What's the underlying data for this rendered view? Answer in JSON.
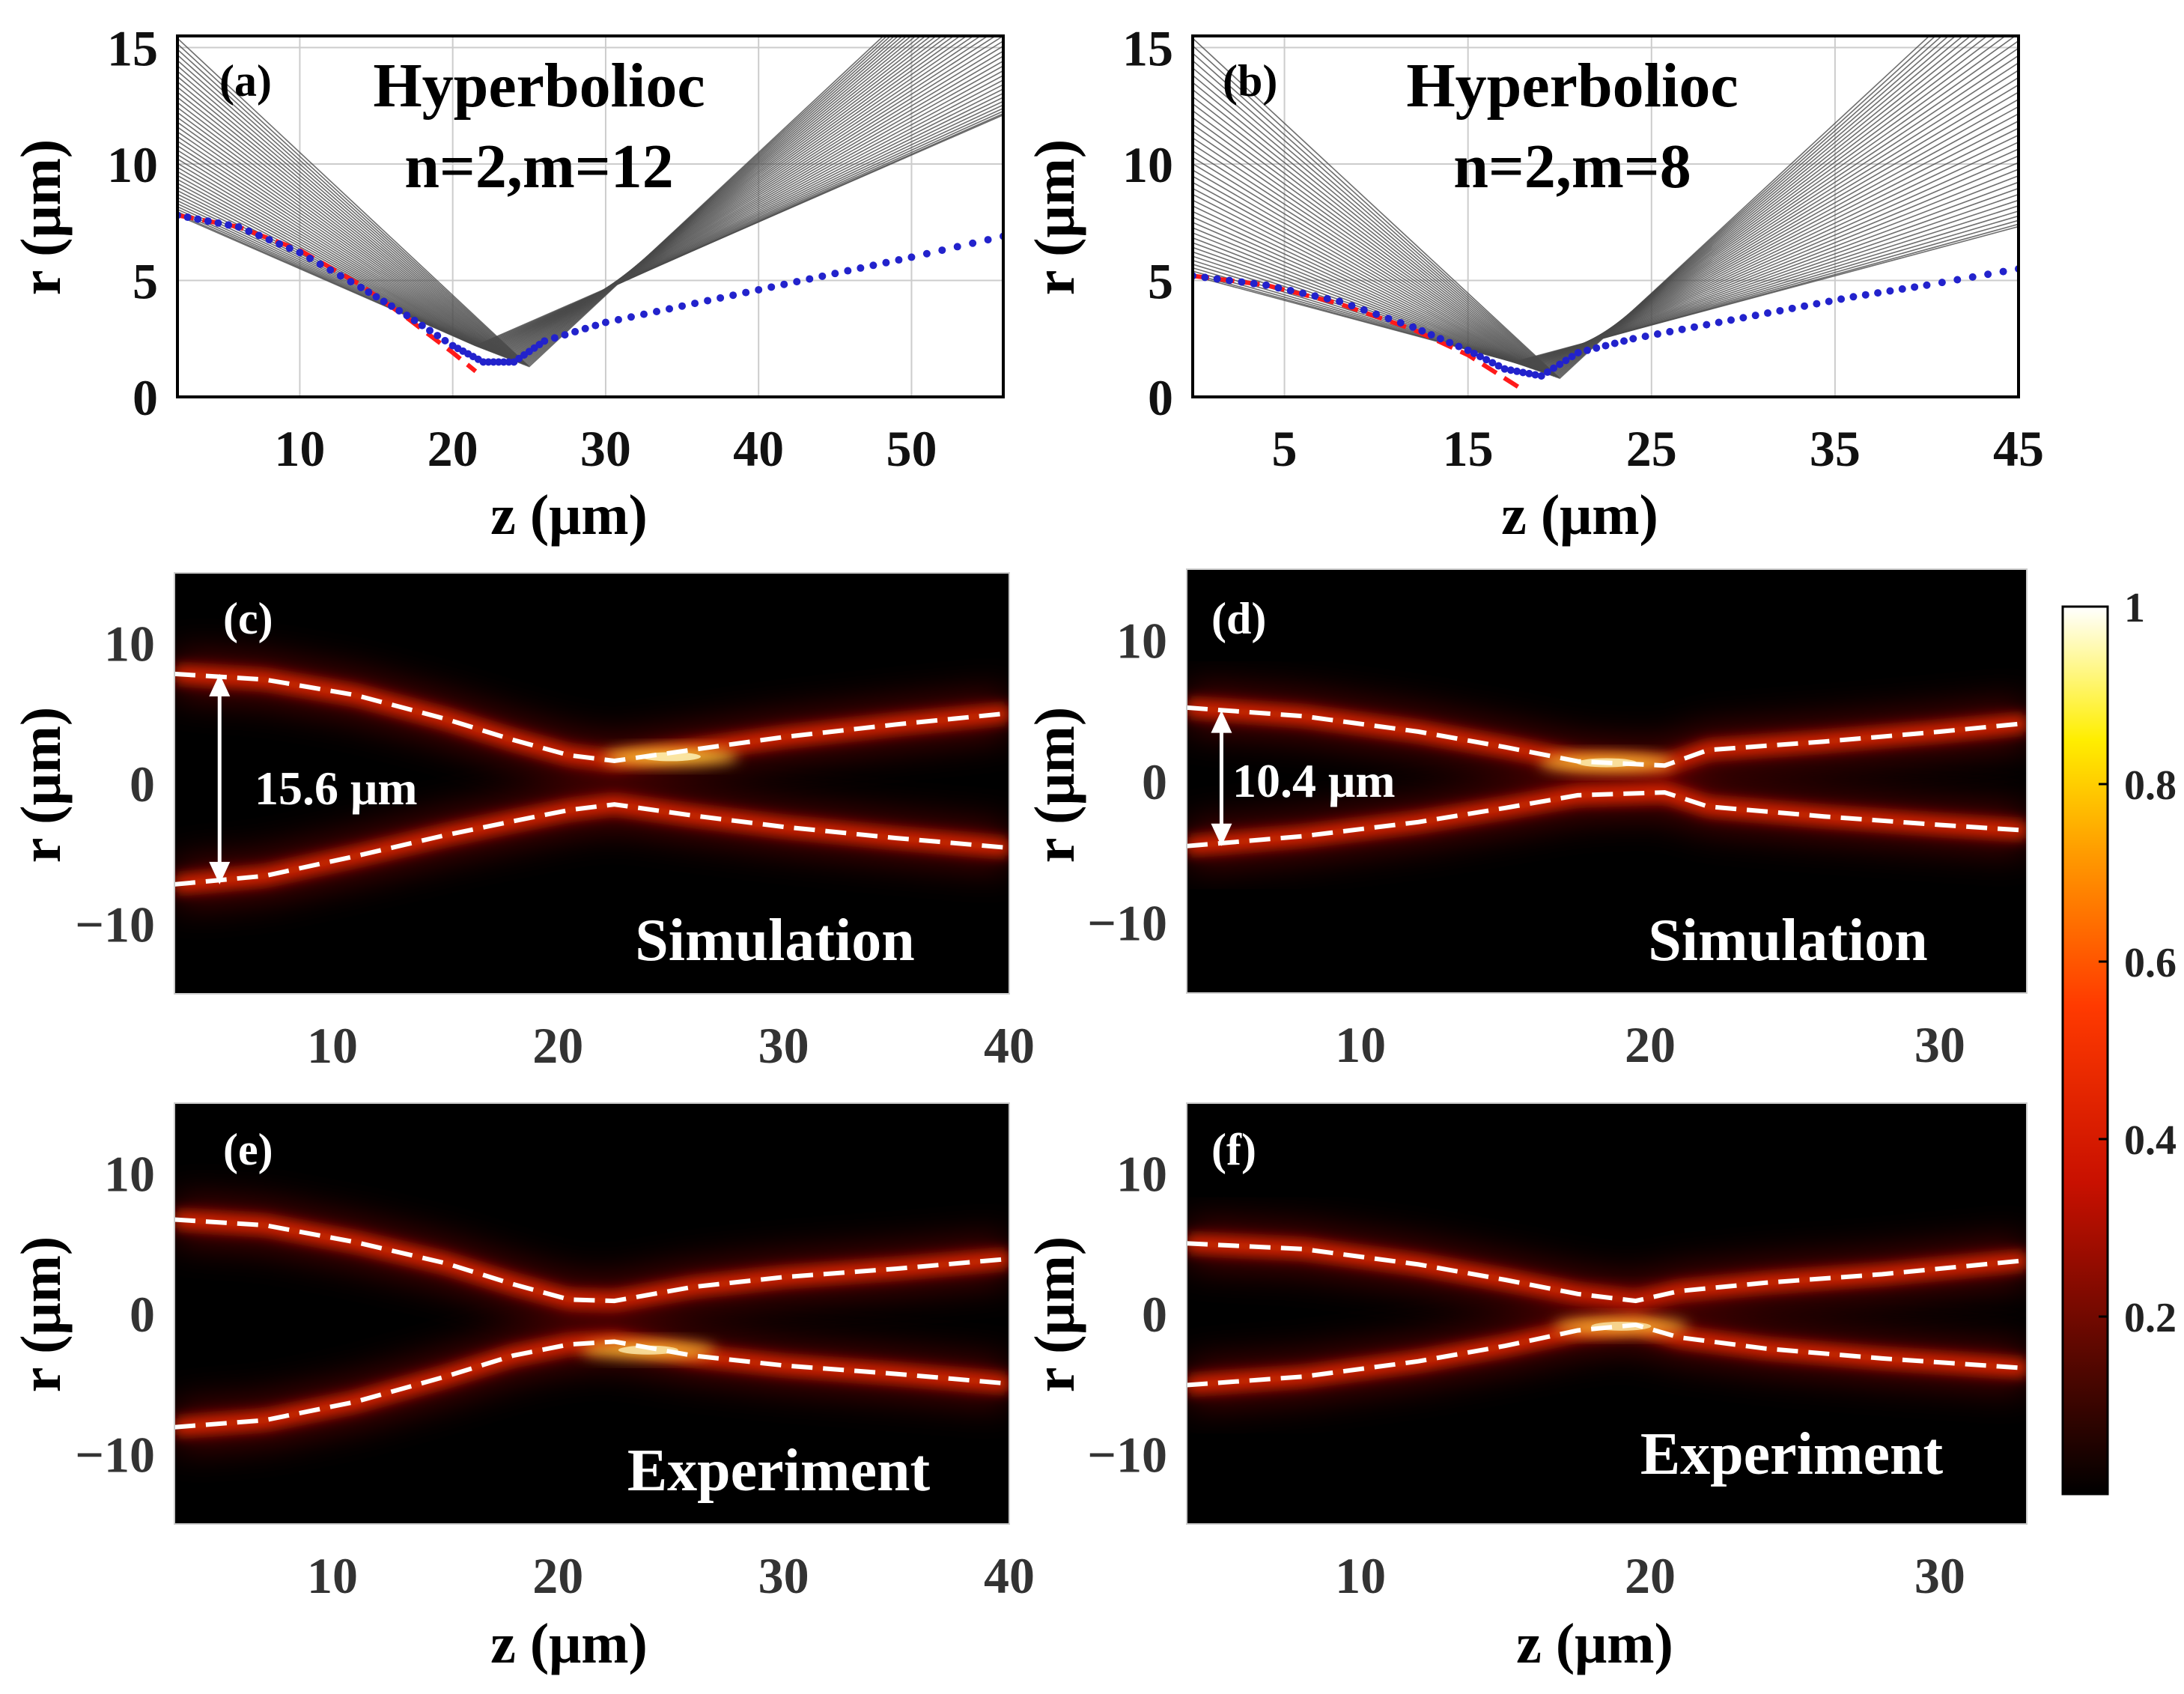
{
  "colors": {
    "ray": "#4a4a4a",
    "theory_dash": "#ff1a1a",
    "numeric_dot": "#2222cc",
    "map_background": "#000000",
    "overlay_dash": "#ffffff",
    "grid": "#cccccc"
  },
  "colorbar": {
    "colormap": "hot",
    "ticks": [
      {
        "value": 1.0,
        "label": "1"
      },
      {
        "value": 0.8,
        "label": "0.8"
      },
      {
        "value": 0.6,
        "label": "0.6"
      },
      {
        "value": 0.4,
        "label": "0.4"
      },
      {
        "value": 0.2,
        "label": "0.2"
      }
    ]
  },
  "chart_data": [
    {
      "id": "a",
      "type": "line",
      "panel_label": "(a)",
      "title": "Hyperbolioc",
      "subtitle": "n=2,m=12",
      "xlabel": "z (μm)",
      "ylabel": "r (μm)",
      "xlim": [
        2,
        56
      ],
      "ylim": [
        0,
        15.5
      ],
      "xticks": [
        10,
        20,
        30,
        40,
        50
      ],
      "yticks": [
        0,
        5,
        10,
        15
      ],
      "grid": true,
      "ray_family": {
        "count": 42,
        "start_z": 2,
        "start_r_range": [
          7.8,
          15.4
        ],
        "focus_z_range": [
          21.5,
          25
        ],
        "focus_r_range": [
          1.3,
          2.2
        ]
      },
      "series": [
        {
          "name": "theory caustic (red dashed)",
          "style": "dashed",
          "x": [
            2,
            6,
            10,
            14,
            17,
            20,
            21.5
          ],
          "y": [
            7.8,
            7.3,
            6.3,
            4.8,
            3.4,
            1.9,
            1.1
          ]
        },
        {
          "name": "numerical envelope (blue dotted)",
          "style": "dotted",
          "x": [
            2,
            6,
            10,
            14,
            17,
            20,
            22,
            24,
            26,
            30,
            35,
            40,
            45,
            50,
            56
          ],
          "y": [
            7.8,
            7.3,
            6.2,
            4.7,
            3.5,
            2.2,
            1.5,
            1.5,
            2.4,
            3.2,
            3.9,
            4.6,
            5.3,
            6.0,
            6.9
          ]
        }
      ]
    },
    {
      "id": "b",
      "type": "line",
      "panel_label": "(b)",
      "title": "Hyperbolioc",
      "subtitle": "n=2,m=8",
      "xlabel": "z (μm)",
      "ylabel": "r (μm)",
      "xlim": [
        0,
        45
      ],
      "ylim": [
        0,
        15.5
      ],
      "xticks": [
        5,
        15,
        25,
        35,
        45
      ],
      "yticks": [
        0,
        5,
        10,
        15
      ],
      "grid": true,
      "ray_family": {
        "count": 42,
        "start_z": 0,
        "start_r_range": [
          5.2,
          15.4
        ],
        "focus_z_range": [
          17.5,
          20
        ],
        "focus_r_range": [
          0.8,
          1.5
        ]
      },
      "series": [
        {
          "name": "theory caustic (red dashed)",
          "style": "dashed",
          "x": [
            0,
            4,
            8,
            12,
            15,
            17,
            18
          ],
          "y": [
            5.2,
            4.8,
            4.0,
            2.9,
            1.8,
            0.8,
            0.3
          ]
        },
        {
          "name": "numerical envelope (blue dotted)",
          "style": "dotted",
          "x": [
            0,
            4,
            8,
            12,
            15,
            17,
            19,
            21,
            24,
            28,
            32,
            36,
            40,
            45
          ],
          "y": [
            5.2,
            4.8,
            4.1,
            3.0,
            2.0,
            1.2,
            0.9,
            1.9,
            2.5,
            3.1,
            3.7,
            4.3,
            4.8,
            5.5
          ]
        }
      ]
    },
    {
      "id": "c",
      "type": "heatmap",
      "panel_label": "(c)",
      "caption": "Simulation",
      "annotation": "15.6 μm",
      "xlabel": "",
      "ylabel": "r (μm)",
      "xlim": [
        3,
        40
      ],
      "ylim": [
        -15,
        15
      ],
      "xticks": [
        10,
        20,
        30,
        40
      ],
      "yticks": [
        -10,
        0,
        10
      ],
      "annotation_arrow": {
        "z": 5,
        "r_from": -7.2,
        "r_to": 7.8
      },
      "upper_branch": {
        "z": [
          3,
          7,
          11,
          15,
          18,
          20.5,
          22.5,
          26,
          30,
          35,
          40
        ],
        "r": [
          7.8,
          7.4,
          6.3,
          4.6,
          3.1,
          2.0,
          1.6,
          2.4,
          3.3,
          4.2,
          5.0
        ]
      },
      "lower_branch": {
        "z": [
          3,
          7,
          11,
          15,
          18,
          20.5,
          22.5,
          26,
          30,
          35,
          40
        ],
        "r": [
          -7.2,
          -6.6,
          -5.2,
          -3.7,
          -2.7,
          -1.9,
          -1.5,
          -2.3,
          -3.1,
          -3.9,
          -4.6
        ]
      },
      "intensity_peak": {
        "z": 25,
        "r": 1.9,
        "value": 1.0
      }
    },
    {
      "id": "d",
      "type": "heatmap",
      "panel_label": "(d)",
      "caption": "Simulation",
      "annotation": "10.4 μm",
      "xlabel": "",
      "ylabel": "r (μm)",
      "xlim": [
        4,
        33
      ],
      "ylim": [
        -15,
        15
      ],
      "xticks": [
        10,
        20,
        30
      ],
      "yticks": [
        -10,
        0,
        10
      ],
      "annotation_arrow": {
        "z": 5.2,
        "r_from": -4.6,
        "r_to": 5.0
      },
      "upper_branch": {
        "z": [
          4,
          8,
          12,
          15,
          17.5,
          20.5,
          22,
          26,
          30,
          33
        ],
        "r": [
          5.2,
          4.6,
          3.5,
          2.4,
          1.4,
          1.1,
          2.2,
          2.8,
          3.5,
          4.1
        ]
      },
      "lower_branch": {
        "z": [
          4,
          8,
          12,
          15,
          17.5,
          20.5,
          22,
          26,
          30,
          33
        ],
        "r": [
          -4.6,
          -3.9,
          -2.9,
          -1.9,
          -1.0,
          -0.8,
          -1.8,
          -2.5,
          -3.1,
          -3.5
        ]
      },
      "intensity_peak": {
        "z": 18.5,
        "r": 1.3,
        "value": 0.95
      }
    },
    {
      "id": "e",
      "type": "heatmap",
      "panel_label": "(e)",
      "caption": "Experiment",
      "xlabel": "z (μm)",
      "ylabel": "r (μm)",
      "xlim": [
        3,
        40
      ],
      "ylim": [
        -15,
        15
      ],
      "xticks": [
        10,
        20,
        30,
        40
      ],
      "yticks": [
        -10,
        0,
        10
      ],
      "upper_branch": {
        "z": [
          3,
          7,
          11,
          15,
          18,
          20.5,
          22.5,
          26,
          30,
          35,
          40
        ],
        "r": [
          6.7,
          6.3,
          5.1,
          3.6,
          2.1,
          1.0,
          0.9,
          1.9,
          2.6,
          3.2,
          3.9
        ]
      },
      "lower_branch": {
        "z": [
          3,
          7,
          11,
          15,
          18,
          20.5,
          22.5,
          26,
          30,
          35,
          40
        ],
        "r": [
          -8.1,
          -7.6,
          -6.3,
          -4.5,
          -3.0,
          -2.2,
          -2.0,
          -3.0,
          -3.7,
          -4.3,
          -5.0
        ]
      },
      "intensity_peak": {
        "z": 24,
        "r": -2.6,
        "value": 0.9
      }
    },
    {
      "id": "f",
      "type": "heatmap",
      "panel_label": "(f)",
      "caption": "Experiment",
      "xlabel": "z (μm)",
      "ylabel": "r (μm)",
      "xlim": [
        4,
        33
      ],
      "ylim": [
        -15,
        15
      ],
      "xticks": [
        10,
        20,
        30
      ],
      "yticks": [
        -10,
        0,
        10
      ],
      "upper_branch": {
        "z": [
          4,
          8,
          12,
          15,
          17.5,
          19.5,
          21,
          24,
          28,
          33
        ],
        "r": [
          5.0,
          4.6,
          3.5,
          2.4,
          1.4,
          0.9,
          1.6,
          2.2,
          2.8,
          3.8
        ]
      },
      "lower_branch": {
        "z": [
          4,
          8,
          12,
          15,
          17.5,
          19.5,
          21,
          24,
          28,
          33
        ],
        "r": [
          -5.1,
          -4.5,
          -3.4,
          -2.3,
          -1.2,
          -0.8,
          -1.7,
          -2.5,
          -3.2,
          -3.9
        ]
      },
      "intensity_peak": {
        "z": 19,
        "r": -0.9,
        "value": 0.85
      }
    }
  ]
}
